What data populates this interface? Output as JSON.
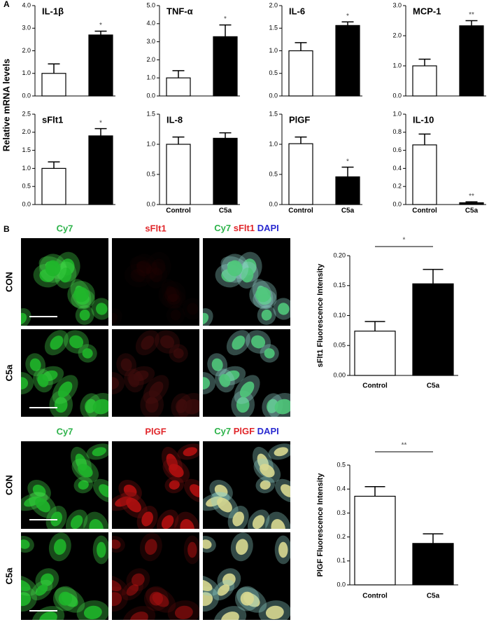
{
  "panel_a": {
    "label": "A",
    "ylabel": "Relative mRNA levels"
  },
  "panel_b": {
    "label": "B"
  },
  "image_panels": [
    {
      "headers": {
        "green": "Cy7",
        "red": "sFlt1",
        "merge": [
          "Cy7",
          "sFlt1",
          "DAPI"
        ]
      },
      "rows": [
        "CON",
        "C5a"
      ]
    },
    {
      "headers": {
        "green": "Cy7",
        "red": "PlGF",
        "merge": [
          "Cy7",
          "PlGF",
          "DAPI"
        ]
      },
      "rows": [
        "CON",
        "C5a"
      ]
    }
  ],
  "chart_data": [
    {
      "type": "bar",
      "title": "IL-1β",
      "categories": [
        null,
        null
      ],
      "values": [
        1.0,
        2.7
      ],
      "errors": [
        0.42,
        0.17
      ],
      "value_annotations": [
        null,
        "*"
      ],
      "colors": [
        "#ffffff",
        "#000000"
      ],
      "ylim": [
        0,
        4
      ],
      "yticks": [
        {
          "value": 0,
          "label": "0.0"
        },
        {
          "value": 1,
          "label": "1.0"
        },
        {
          "value": 2,
          "label": "2.0"
        },
        {
          "value": 3,
          "label": "3.0"
        },
        {
          "value": 4,
          "label": "4.0"
        }
      ]
    },
    {
      "type": "bar",
      "title": "TNF-α",
      "categories": [
        null,
        null
      ],
      "values": [
        1.0,
        3.28
      ],
      "errors": [
        0.4,
        0.65
      ],
      "value_annotations": [
        null,
        "*"
      ],
      "colors": [
        "#ffffff",
        "#000000"
      ],
      "ylim": [
        0,
        5
      ],
      "yticks": [
        {
          "value": 0,
          "label": "0.0"
        },
        {
          "value": 1,
          "label": "1.0"
        },
        {
          "value": 2,
          "label": "2.0"
        },
        {
          "value": 3,
          "label": "3.0"
        },
        {
          "value": 4,
          "label": "4.0"
        },
        {
          "value": 5,
          "label": "5.0"
        }
      ]
    },
    {
      "type": "bar",
      "title": "IL-6",
      "categories": [
        null,
        null
      ],
      "values": [
        1.0,
        1.56
      ],
      "errors": [
        0.18,
        0.08
      ],
      "value_annotations": [
        null,
        "*"
      ],
      "colors": [
        "#ffffff",
        "#000000"
      ],
      "ylim": [
        0,
        2
      ],
      "yticks": [
        {
          "value": 0,
          "label": "0.0"
        },
        0.5,
        {
          "value": 1,
          "label": "1.0"
        },
        1.5,
        {
          "value": 2,
          "label": "2.0"
        }
      ]
    },
    {
      "type": "bar",
      "title": "MCP-1",
      "categories": [
        null,
        null
      ],
      "values": [
        1.0,
        2.33
      ],
      "errors": [
        0.22,
        0.17
      ],
      "value_annotations": [
        null,
        "**"
      ],
      "colors": [
        "#ffffff",
        "#000000"
      ],
      "ylim": [
        0,
        3
      ],
      "yticks": [
        {
          "value": 0,
          "label": "0.0"
        },
        {
          "value": 1,
          "label": "1.0"
        },
        {
          "value": 2,
          "label": "2.0"
        },
        {
          "value": 3,
          "label": "3.0"
        }
      ]
    },
    {
      "type": "bar",
      "title": "sFlt1",
      "categories": [
        null,
        null
      ],
      "values": [
        1.0,
        1.9
      ],
      "errors": [
        0.18,
        0.2
      ],
      "value_annotations": [
        null,
        "*"
      ],
      "colors": [
        "#ffffff",
        "#000000"
      ],
      "ylim": [
        0,
        2.5
      ],
      "yticks": [
        {
          "value": 0,
          "label": "0.0"
        },
        0.5,
        {
          "value": 1,
          "label": "1.0"
        },
        1.5,
        {
          "value": 2,
          "label": "2.0"
        },
        2.5
      ]
    },
    {
      "type": "bar",
      "title": "IL-8",
      "categories": [
        "Control",
        "C5a"
      ],
      "values": [
        1.0,
        1.1
      ],
      "errors": [
        0.12,
        0.09
      ],
      "value_annotations": [
        null,
        null
      ],
      "colors": [
        "#ffffff",
        "#000000"
      ],
      "ylim": [
        0,
        1.5
      ],
      "yticks": [
        {
          "value": 0,
          "label": "0.0"
        },
        0.5,
        {
          "value": 1,
          "label": "1.0"
        },
        1.5
      ]
    },
    {
      "type": "bar",
      "title": "PlGF",
      "categories": [
        "Control",
        "C5a"
      ],
      "values": [
        1.01,
        0.46
      ],
      "errors": [
        0.11,
        0.16
      ],
      "value_annotations": [
        null,
        "*"
      ],
      "colors": [
        "#ffffff",
        "#000000"
      ],
      "ylim": [
        0,
        1.5
      ],
      "yticks": [
        {
          "value": 0,
          "label": "0.0"
        },
        0.5,
        {
          "value": 1,
          "label": "1.0"
        },
        1.5
      ]
    },
    {
      "type": "bar",
      "title": "IL-10",
      "categories": [
        "Control",
        "C5a"
      ],
      "values": [
        0.66,
        0.02
      ],
      "errors": [
        0.12,
        0.01
      ],
      "value_annotations": [
        null,
        "**"
      ],
      "colors": [
        "#ffffff",
        "#000000"
      ],
      "ylim": [
        0,
        1
      ],
      "yticks": [
        {
          "value": 0,
          "label": "0.0"
        },
        0.2,
        0.4,
        0.6,
        0.8,
        {
          "value": 1,
          "label": "1.0"
        }
      ]
    },
    {
      "type": "bar",
      "ylabel": "sFlt1 Fluorescence Intensity",
      "categories": [
        "Control",
        "C5a"
      ],
      "values": [
        0.074,
        0.153
      ],
      "errors": [
        0.016,
        0.024
      ],
      "bracket_label": "*",
      "colors": [
        "#ffffff",
        "#000000"
      ],
      "ylim": [
        0,
        0.2
      ],
      "yticks": [
        {
          "value": 0,
          "label": "0.00"
        },
        0.05,
        {
          "value": 0.1,
          "label": "0.10"
        },
        0.15,
        {
          "value": 0.2,
          "label": "0.20"
        }
      ]
    },
    {
      "type": "bar",
      "ylabel": "PlGF Fluorescence Intensity",
      "categories": [
        "Control",
        "C5a"
      ],
      "values": [
        0.37,
        0.173
      ],
      "errors": [
        0.04,
        0.04
      ],
      "bracket_label": "**",
      "colors": [
        "#ffffff",
        "#000000"
      ],
      "ylim": [
        0,
        0.5
      ],
      "yticks": [
        {
          "value": 0,
          "label": "0.0"
        },
        0.1,
        0.2,
        0.3,
        0.4,
        0.5
      ]
    }
  ]
}
